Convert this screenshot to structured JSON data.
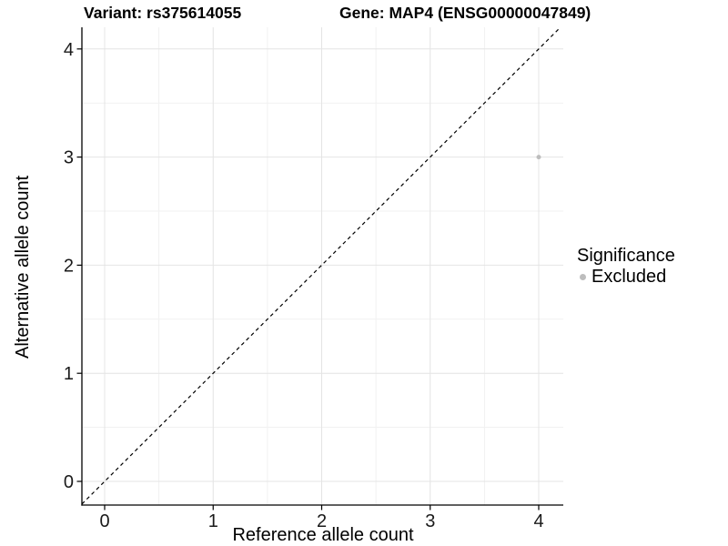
{
  "chart_data": {
    "type": "scatter",
    "title_left": "Variant: rs375614055",
    "title_right": "Gene: MAP4 (ENSG00000047849)",
    "xlabel": "Reference allele count",
    "ylabel": "Alternative allele count",
    "x_ticks": [
      "0",
      "1",
      "2",
      "3",
      "4"
    ],
    "y_ticks": [
      "0",
      "1",
      "2",
      "3",
      "4"
    ],
    "xlim": [
      -0.21,
      4.23
    ],
    "ylim": [
      -0.22,
      4.2
    ],
    "grid": {
      "major": true,
      "minor": true
    },
    "points": [
      {
        "x": 4,
        "y": 3,
        "significance": "Excluded"
      }
    ],
    "identity_line": {
      "slope": 1,
      "intercept": 0,
      "style": "dashed"
    },
    "legend": {
      "title": "Significance",
      "position": "right",
      "items": [
        {
          "label": "Excluded",
          "color": "#bdbdbd"
        }
      ]
    },
    "colors": {
      "point_excluded": "#bdbdbd",
      "grid_major": "#e4e4e4",
      "grid_minor": "#f1f1f1",
      "axis": "#000000",
      "tick_label": "#1a1a1a",
      "identity_line": "#000000"
    }
  }
}
